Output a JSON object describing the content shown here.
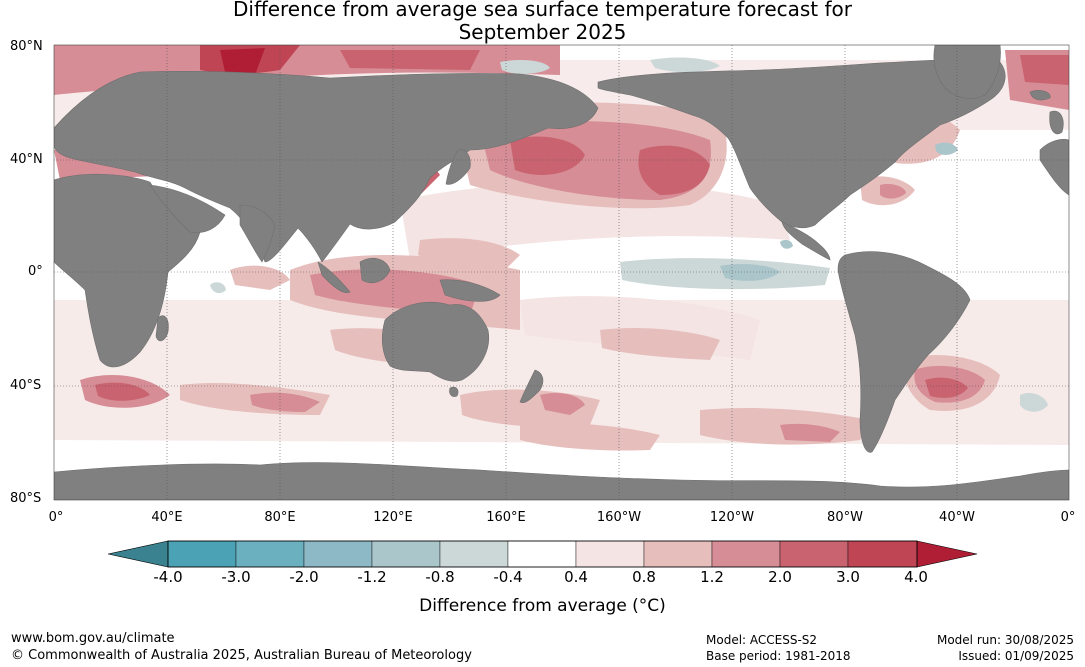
{
  "title": {
    "line1": "Difference from average sea surface temperature forecast for",
    "line2": "September 2025"
  },
  "map": {
    "lat_labels": [
      "80°N",
      "40°N",
      "0°",
      "40°S",
      "80°S"
    ],
    "lon_labels": [
      "0°",
      "40°E",
      "80°E",
      "120°E",
      "160°E",
      "160°W",
      "120°W",
      "80°W",
      "40°W",
      "0°"
    ],
    "colors": {
      "land": "#808080",
      "ocean_neutral": "#ffffff",
      "grid": "#555555"
    }
  },
  "colorbar": {
    "label": "Difference from average (°C)",
    "ticks": [
      "-4.0",
      "-3.0",
      "-2.0",
      "-1.2",
      "-0.8",
      "-0.4",
      "0.4",
      "0.8",
      "1.2",
      "2.0",
      "3.0",
      "4.0"
    ],
    "colors": [
      "#3b8290",
      "#4aa2b4",
      "#6bb0bf",
      "#8db8c6",
      "#abc6cb",
      "#ccd7d8",
      "#ffffff",
      "#f4e4e3",
      "#e6bfbd",
      "#d68d95",
      "#c9636f",
      "#bf4555",
      "#b01e36"
    ]
  },
  "footer": {
    "url": "www.bom.gov.au/climate",
    "copyright": "© Commonwealth of Australia 2025, Australian Bureau of Meteorology",
    "model": "Model: ACCESS-S2",
    "base_period": "Base period: 1981-2018",
    "model_run": "Model run: 30/08/2025",
    "issued": "Issued: 01/09/2025"
  }
}
